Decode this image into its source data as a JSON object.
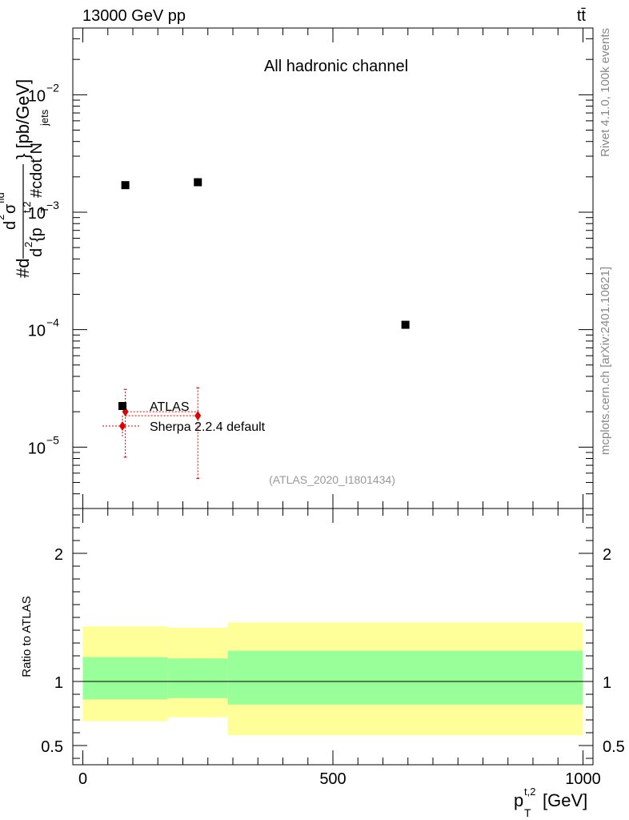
{
  "header": {
    "energy_label": "13000 GeV pp",
    "process_label": "tt̄"
  },
  "side_labels": {
    "rivet": "Rivet 4.1.0,  100k events",
    "mcplots": "mcplots.cern.ch [arXiv:2401.10621]"
  },
  "chart_data": [
    {
      "type": "scatter",
      "title": "All hadronic channel",
      "watermark": "(ATLAS_2020_I1801434)",
      "xlabel": "p_T^{t,2} [GeV]",
      "ylabel": "#d d^2σ^fid / d^2 {p_T^{t,2} #cdot N_jets} [pb/GeV]",
      "ylabel_parts": {
        "hash_d": "#d",
        "numerator": "d",
        "num_sup": "2",
        "sigma": "σ",
        "sigma_sup": "fid",
        "denominator_d": "d",
        "den_sup": "2",
        "den_open": " {p",
        "den_sub": "T",
        "den_sup2": "t,2",
        "cdot_text": " #cdot N",
        "jets": "jets",
        "close_unit": "} [pb/GeV]"
      },
      "xlabel_parts": {
        "p": "p",
        "sup": "t,2",
        "sub": "T",
        "unit": " [GeV]"
      },
      "xlim": [
        -20,
        1020
      ],
      "yscale": "log",
      "ylim": [
        3e-06,
        0.037
      ],
      "y_ticks": [
        {
          "base": "10",
          "exp": "−2",
          "value": 0.01
        },
        {
          "base": "10",
          "exp": "−3",
          "value": 0.001
        },
        {
          "base": "10",
          "exp": "−4",
          "value": 0.0001
        },
        {
          "base": "10",
          "exp": "−5",
          "value": 1e-05
        }
      ],
      "legend_position": "bottom-left",
      "series": [
        {
          "name": "ATLAS",
          "marker": "square",
          "color": "#000000",
          "points": [
            {
              "x": 85,
              "y": 0.0017
            },
            {
              "x": 230,
              "y": 0.0018
            },
            {
              "x": 645,
              "y": 0.00011
            }
          ]
        },
        {
          "name": "Sherpa 2.2.4 default",
          "marker": "diamond",
          "color": "#dd0000",
          "points": [
            {
              "x": 85,
              "y": 2e-05,
              "ylo": 8.2e-06,
              "yhi": 3.1e-05,
              "xlo": 82,
              "xhi": 230
            },
            {
              "x": 230,
              "y": 1.85e-05,
              "ylo": 5.4e-06,
              "yhi": 3.2e-05,
              "xlo": 85,
              "xhi": 233
            }
          ]
        }
      ]
    },
    {
      "type": "area",
      "ylabel": "Ratio to ATLAS",
      "xlim": [
        -20,
        1020
      ],
      "ylim": [
        0.35,
        2.35
      ],
      "x_ticks": [
        {
          "label": "0",
          "value": 0
        },
        {
          "label": "500",
          "value": 500
        },
        {
          "label": "1000",
          "value": 1000
        }
      ],
      "y_ticks": [
        {
          "label": "2",
          "value": 2
        },
        {
          "label": "1",
          "value": 1
        },
        {
          "label": "0.5",
          "value": 0.5
        }
      ],
      "reference_line": 1,
      "bins": [
        {
          "xlo": 0,
          "xhi": 170,
          "inner": [
            0.86,
            1.19
          ],
          "outer": [
            0.69,
            1.43
          ]
        },
        {
          "xlo": 170,
          "xhi": 290,
          "inner": [
            0.87,
            1.18
          ],
          "outer": [
            0.72,
            1.42
          ]
        },
        {
          "xlo": 290,
          "xhi": 1000,
          "inner": [
            0.82,
            1.24
          ],
          "outer": [
            0.58,
            1.46
          ]
        }
      ],
      "colors": {
        "inner": "#99ff99",
        "outer": "#ffff99"
      }
    }
  ]
}
